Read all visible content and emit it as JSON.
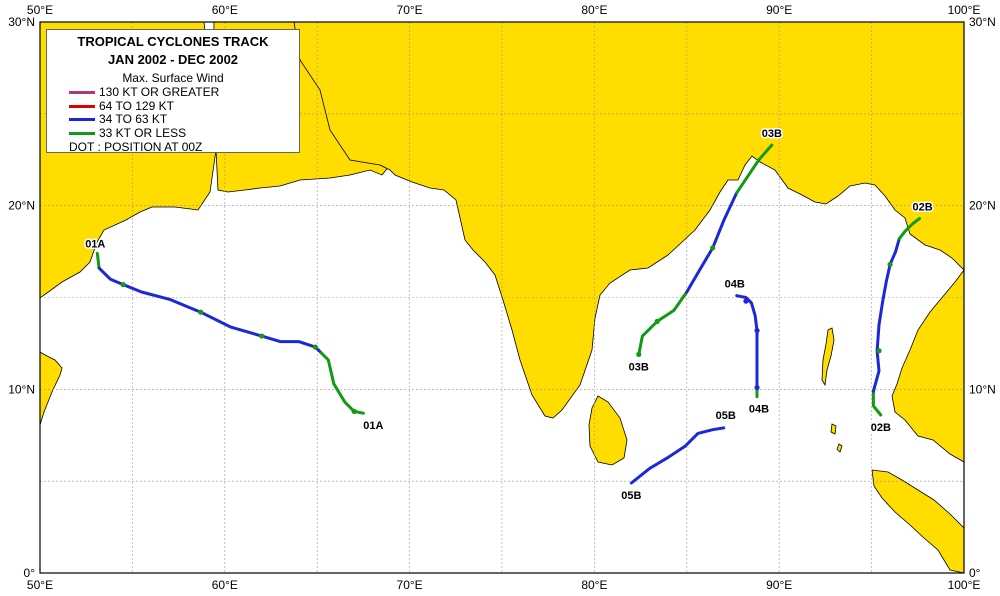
{
  "map": {
    "background_color": "#ffffff",
    "land_color": "#ffdd00",
    "coast_color": "#000000",
    "grid_color": "#999999",
    "lon_range": [
      50,
      100
    ],
    "lat_range": [
      0,
      30
    ],
    "lon_ticks": [
      {
        "value": 50,
        "label": "50°E"
      },
      {
        "value": 60,
        "label": "60°E"
      },
      {
        "value": 70,
        "label": "70°E"
      },
      {
        "value": 80,
        "label": "80°E"
      },
      {
        "value": 90,
        "label": "90°E"
      },
      {
        "value": 100,
        "label": "100°E"
      }
    ],
    "lat_ticks": [
      {
        "value": 0,
        "label": "0°"
      },
      {
        "value": 10,
        "label": "10°N"
      },
      {
        "value": 20,
        "label": "20°N"
      },
      {
        "value": 30,
        "label": "30°N"
      }
    ]
  },
  "legend": {
    "title_line1": "TROPICAL CYCLONES TRACK",
    "title_line2": "JAN 2002  -  DEC 2002",
    "subtitle": "Max. Surface Wind",
    "items": [
      {
        "label": "130 KT OR GREATER",
        "color": "#b03a78"
      },
      {
        "label": "64 TO 129 KT",
        "color": "#e00000"
      },
      {
        "label": "34 TO 63 KT",
        "color": "#1c28d8"
      },
      {
        "label": "33 KT OR LESS",
        "color": "#129a12"
      }
    ],
    "dot_note": "DOT : POSITION AT 00Z"
  },
  "storms": [
    {
      "id": "01A",
      "start_label": "01A",
      "end_label": "01A",
      "segments": [
        {
          "class": "green",
          "points": [
            [
              53.1,
              17.4
            ],
            [
              53.2,
              16.6
            ]
          ]
        },
        {
          "class": "blue",
          "points": [
            [
              53.2,
              16.6
            ],
            [
              53.8,
              16.0
            ],
            [
              54.5,
              15.7
            ],
            [
              55.5,
              15.3
            ],
            [
              57.0,
              14.9
            ],
            [
              58.7,
              14.2
            ],
            [
              60.3,
              13.4
            ],
            [
              62.0,
              12.9
            ],
            [
              63.0,
              12.6
            ],
            [
              64.0,
              12.6
            ],
            [
              64.9,
              12.3
            ],
            [
              65.2,
              12.0
            ]
          ]
        },
        {
          "class": "green",
          "points": [
            [
              65.2,
              12.0
            ],
            [
              65.6,
              11.6
            ],
            [
              65.9,
              10.3
            ],
            [
              66.5,
              9.3
            ],
            [
              67.0,
              8.8
            ],
            [
              67.5,
              8.7
            ]
          ]
        }
      ],
      "dots": [
        [
          54.5,
          15.7
        ],
        [
          58.7,
          14.2
        ],
        [
          62.0,
          12.9
        ],
        [
          64.9,
          12.3
        ],
        [
          67.0,
          8.8
        ]
      ]
    },
    {
      "id": "03B",
      "start_label": "03B",
      "end_label": "03B",
      "segments": [
        {
          "class": "green",
          "points": [
            [
              82.4,
              11.9
            ],
            [
              82.6,
              12.9
            ],
            [
              83.4,
              13.7
            ],
            [
              84.3,
              14.3
            ],
            [
              85.0,
              15.3
            ]
          ]
        },
        {
          "class": "blue",
          "points": [
            [
              85.0,
              15.3
            ],
            [
              85.7,
              16.5
            ],
            [
              86.4,
              17.7
            ],
            [
              87.0,
              19.2
            ],
            [
              87.7,
              20.7
            ]
          ]
        },
        {
          "class": "green",
          "points": [
            [
              87.7,
              20.7
            ],
            [
              88.3,
              21.6
            ],
            [
              88.9,
              22.5
            ],
            [
              89.6,
              23.3
            ]
          ]
        }
      ],
      "dots": [
        [
          82.4,
          11.9
        ],
        [
          83.4,
          13.7
        ],
        [
          86.4,
          17.7
        ]
      ]
    },
    {
      "id": "04B",
      "start_label": "04B",
      "end_label": "04B",
      "segments": [
        {
          "class": "blue",
          "points": [
            [
              87.7,
              15.1
            ],
            [
              88.2,
              15.0
            ],
            [
              88.5,
              14.7
            ],
            [
              88.7,
              14.0
            ],
            [
              88.8,
              13.2
            ],
            [
              88.8,
              12.4
            ],
            [
              88.8,
              11.5
            ],
            [
              88.8,
              10.1
            ]
          ]
        },
        {
          "class": "green",
          "points": [
            [
              88.8,
              10.1
            ],
            [
              88.8,
              9.6
            ]
          ]
        }
      ],
      "dots": [
        [
          88.2,
          14.8
        ],
        [
          88.8,
          13.2
        ],
        [
          88.8,
          10.1
        ]
      ]
    },
    {
      "id": "05B",
      "start_label": "05B",
      "end_label": "05B",
      "segments": [
        {
          "class": "blue",
          "points": [
            [
              82.0,
              4.9
            ],
            [
              83.0,
              5.7
            ],
            [
              84.0,
              6.3
            ],
            [
              84.9,
              6.9
            ],
            [
              85.6,
              7.6
            ],
            [
              86.4,
              7.8
            ],
            [
              87.0,
              7.9
            ]
          ]
        }
      ],
      "dots": []
    },
    {
      "id": "02B",
      "start_label": "02B",
      "end_label": "02B",
      "segments": [
        {
          "class": "green",
          "points": [
            [
              95.5,
              8.6
            ],
            [
              95.1,
              9.1
            ],
            [
              95.1,
              9.9
            ]
          ]
        },
        {
          "class": "blue",
          "points": [
            [
              95.1,
              9.9
            ],
            [
              95.4,
              11.0
            ],
            [
              95.3,
              12.1
            ],
            [
              95.4,
              13.5
            ],
            [
              95.6,
              14.8
            ],
            [
              95.8,
              15.9
            ],
            [
              96.0,
              16.8
            ],
            [
              96.3,
              17.5
            ],
            [
              96.5,
              18.2
            ]
          ]
        },
        {
          "class": "green",
          "points": [
            [
              96.5,
              18.2
            ],
            [
              96.8,
              18.6
            ],
            [
              97.2,
              19.0
            ],
            [
              97.6,
              19.3
            ]
          ]
        }
      ],
      "dots": [
        [
          95.4,
          12.1
        ],
        [
          96.0,
          16.8
        ]
      ]
    }
  ]
}
